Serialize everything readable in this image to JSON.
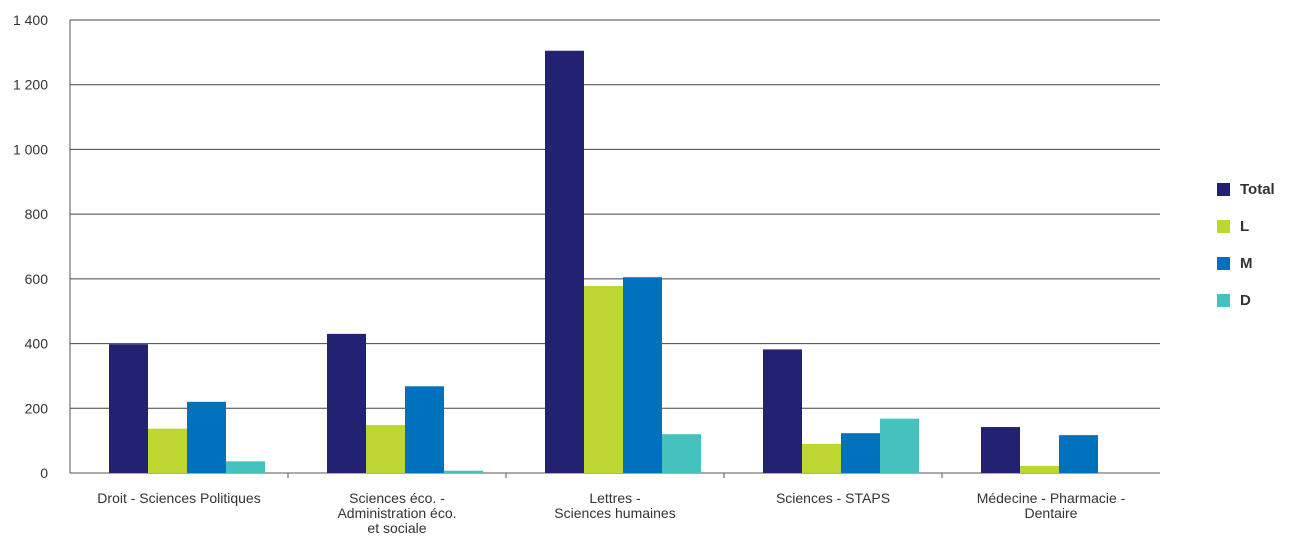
{
  "chart_data": {
    "type": "bar",
    "categories": [
      [
        "Droit - Sciences Politiques"
      ],
      [
        "Sciences éco. -",
        "Administration éco.",
        "et sociale"
      ],
      [
        "Lettres -",
        "Sciences humaines"
      ],
      [
        "Sciences - STAPS"
      ],
      [
        "Médecine - Pharmacie -",
        "Dentaire"
      ]
    ],
    "series": [
      {
        "name": "Total",
        "color": "#232171",
        "values": [
          398,
          430,
          1305,
          382,
          142
        ]
      },
      {
        "name": "L",
        "color": "#bdd631",
        "values": [
          137,
          148,
          578,
          90,
          22
        ]
      },
      {
        "name": "M",
        "color": "#0071bc",
        "values": [
          220,
          268,
          605,
          123,
          117
        ]
      },
      {
        "name": "D",
        "color": "#45c1be",
        "values": [
          36,
          7,
          120,
          168,
          0
        ]
      }
    ],
    "yticks": [
      "0",
      "200",
      "400",
      "600",
      "800",
      "1 000",
      "1 200",
      "1 400"
    ],
    "ylim": [
      0,
      1400
    ],
    "grid": true,
    "legend_position": "right"
  }
}
